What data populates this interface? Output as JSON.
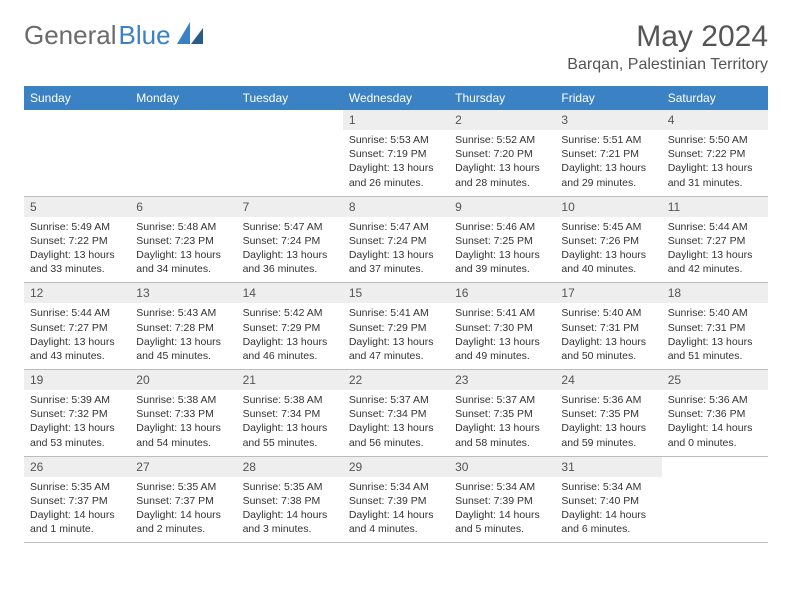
{
  "brand": {
    "part1": "General",
    "part2": "Blue"
  },
  "title": "May 2024",
  "location": "Barqan, Palestinian Territory",
  "colors": {
    "header_bg": "#3b82c4",
    "header_text": "#ffffff",
    "date_bar_bg": "#eeeeee",
    "text": "#333333",
    "border": "#bcbcbc",
    "brand_gray": "#6b6b6b",
    "brand_blue": "#3b82c4"
  },
  "weekdays": [
    "Sunday",
    "Monday",
    "Tuesday",
    "Wednesday",
    "Thursday",
    "Friday",
    "Saturday"
  ],
  "weeks": [
    [
      null,
      null,
      null,
      {
        "d": "1",
        "sr": "5:53 AM",
        "ss": "7:19 PM",
        "dl": "13 hours and 26 minutes."
      },
      {
        "d": "2",
        "sr": "5:52 AM",
        "ss": "7:20 PM",
        "dl": "13 hours and 28 minutes."
      },
      {
        "d": "3",
        "sr": "5:51 AM",
        "ss": "7:21 PM",
        "dl": "13 hours and 29 minutes."
      },
      {
        "d": "4",
        "sr": "5:50 AM",
        "ss": "7:22 PM",
        "dl": "13 hours and 31 minutes."
      }
    ],
    [
      {
        "d": "5",
        "sr": "5:49 AM",
        "ss": "7:22 PM",
        "dl": "13 hours and 33 minutes."
      },
      {
        "d": "6",
        "sr": "5:48 AM",
        "ss": "7:23 PM",
        "dl": "13 hours and 34 minutes."
      },
      {
        "d": "7",
        "sr": "5:47 AM",
        "ss": "7:24 PM",
        "dl": "13 hours and 36 minutes."
      },
      {
        "d": "8",
        "sr": "5:47 AM",
        "ss": "7:24 PM",
        "dl": "13 hours and 37 minutes."
      },
      {
        "d": "9",
        "sr": "5:46 AM",
        "ss": "7:25 PM",
        "dl": "13 hours and 39 minutes."
      },
      {
        "d": "10",
        "sr": "5:45 AM",
        "ss": "7:26 PM",
        "dl": "13 hours and 40 minutes."
      },
      {
        "d": "11",
        "sr": "5:44 AM",
        "ss": "7:27 PM",
        "dl": "13 hours and 42 minutes."
      }
    ],
    [
      {
        "d": "12",
        "sr": "5:44 AM",
        "ss": "7:27 PM",
        "dl": "13 hours and 43 minutes."
      },
      {
        "d": "13",
        "sr": "5:43 AM",
        "ss": "7:28 PM",
        "dl": "13 hours and 45 minutes."
      },
      {
        "d": "14",
        "sr": "5:42 AM",
        "ss": "7:29 PM",
        "dl": "13 hours and 46 minutes."
      },
      {
        "d": "15",
        "sr": "5:41 AM",
        "ss": "7:29 PM",
        "dl": "13 hours and 47 minutes."
      },
      {
        "d": "16",
        "sr": "5:41 AM",
        "ss": "7:30 PM",
        "dl": "13 hours and 49 minutes."
      },
      {
        "d": "17",
        "sr": "5:40 AM",
        "ss": "7:31 PM",
        "dl": "13 hours and 50 minutes."
      },
      {
        "d": "18",
        "sr": "5:40 AM",
        "ss": "7:31 PM",
        "dl": "13 hours and 51 minutes."
      }
    ],
    [
      {
        "d": "19",
        "sr": "5:39 AM",
        "ss": "7:32 PM",
        "dl": "13 hours and 53 minutes."
      },
      {
        "d": "20",
        "sr": "5:38 AM",
        "ss": "7:33 PM",
        "dl": "13 hours and 54 minutes."
      },
      {
        "d": "21",
        "sr": "5:38 AM",
        "ss": "7:34 PM",
        "dl": "13 hours and 55 minutes."
      },
      {
        "d": "22",
        "sr": "5:37 AM",
        "ss": "7:34 PM",
        "dl": "13 hours and 56 minutes."
      },
      {
        "d": "23",
        "sr": "5:37 AM",
        "ss": "7:35 PM",
        "dl": "13 hours and 58 minutes."
      },
      {
        "d": "24",
        "sr": "5:36 AM",
        "ss": "7:35 PM",
        "dl": "13 hours and 59 minutes."
      },
      {
        "d": "25",
        "sr": "5:36 AM",
        "ss": "7:36 PM",
        "dl": "14 hours and 0 minutes."
      }
    ],
    [
      {
        "d": "26",
        "sr": "5:35 AM",
        "ss": "7:37 PM",
        "dl": "14 hours and 1 minute."
      },
      {
        "d": "27",
        "sr": "5:35 AM",
        "ss": "7:37 PM",
        "dl": "14 hours and 2 minutes."
      },
      {
        "d": "28",
        "sr": "5:35 AM",
        "ss": "7:38 PM",
        "dl": "14 hours and 3 minutes."
      },
      {
        "d": "29",
        "sr": "5:34 AM",
        "ss": "7:39 PM",
        "dl": "14 hours and 4 minutes."
      },
      {
        "d": "30",
        "sr": "5:34 AM",
        "ss": "7:39 PM",
        "dl": "14 hours and 5 minutes."
      },
      {
        "d": "31",
        "sr": "5:34 AM",
        "ss": "7:40 PM",
        "dl": "14 hours and 6 minutes."
      },
      null
    ]
  ],
  "labels": {
    "sunrise": "Sunrise:",
    "sunset": "Sunset:",
    "daylight": "Daylight:"
  }
}
